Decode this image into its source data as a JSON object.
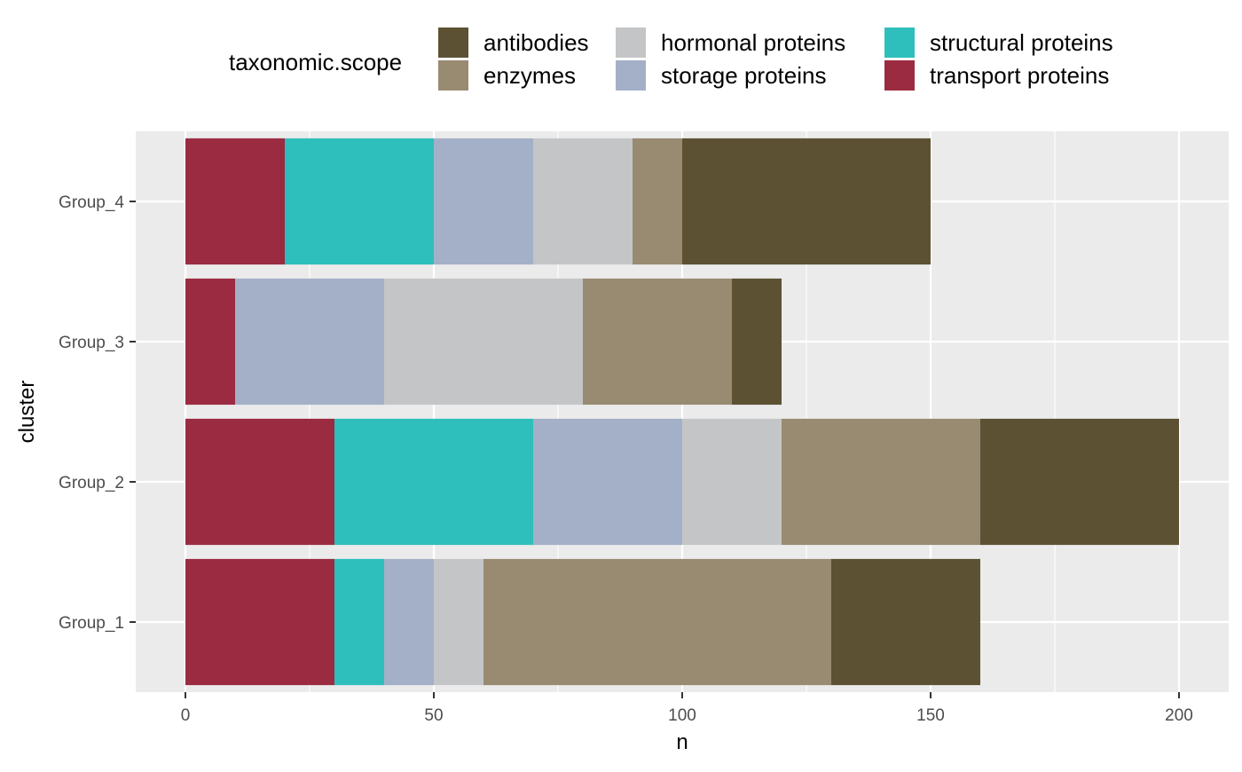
{
  "chart_data": {
    "type": "bar",
    "orientation": "horizontal",
    "stacked": true,
    "title": "",
    "xlabel": "n",
    "ylabel": "cluster",
    "xlim": [
      0,
      200
    ],
    "x_ticks": [
      0,
      50,
      100,
      150,
      200
    ],
    "categories": [
      "Group_1",
      "Group_2",
      "Group_3",
      "Group_4"
    ],
    "grid": true,
    "legend": {
      "title": "taxonomic.scope",
      "position": "top",
      "items": [
        {
          "label": "antibodies",
          "color": "#5C5233"
        },
        {
          "label": "enzymes",
          "color": "#998A72"
        },
        {
          "label": "hormonal proteins",
          "color": "#C4C5C7"
        },
        {
          "label": "storage proteins",
          "color": "#A4B0C7"
        },
        {
          "label": "structural proteins",
          "color": "#2EBFBC"
        },
        {
          "label": "transport proteins",
          "color": "#9B2B41"
        }
      ]
    },
    "series": [
      {
        "name": "transport proteins",
        "color": "#9B2B41",
        "values": [
          30,
          30,
          10,
          20
        ]
      },
      {
        "name": "structural proteins",
        "color": "#2EBFBC",
        "values": [
          10,
          40,
          0,
          30
        ]
      },
      {
        "name": "storage proteins",
        "color": "#A4B0C7",
        "values": [
          10,
          30,
          30,
          20
        ]
      },
      {
        "name": "hormonal proteins",
        "color": "#C4C5C7",
        "values": [
          10,
          20,
          40,
          20
        ]
      },
      {
        "name": "enzymes",
        "color": "#998A72",
        "values": [
          70,
          40,
          30,
          10
        ]
      },
      {
        "name": "antibodies",
        "color": "#5C5233",
        "values": [
          30,
          40,
          10,
          50
        ]
      }
    ],
    "panel_background": "#EBEBEB",
    "grid_color": "#FFFFFF"
  }
}
